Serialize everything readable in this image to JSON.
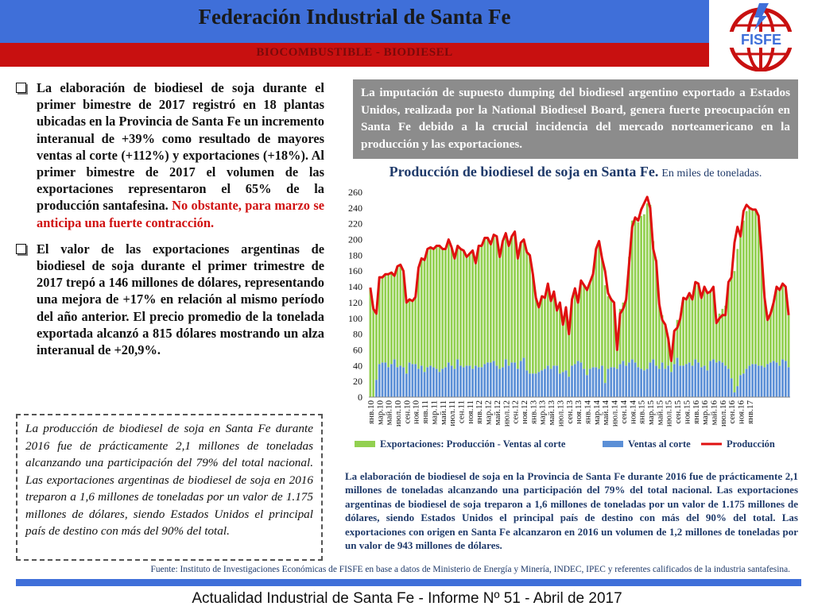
{
  "header": {
    "title": "Federación Industrial de Santa Fe",
    "subtitle": "BIOCOMBUSTIBLE - BIODIESEL",
    "logo_text": "FISFE"
  },
  "bullets": [
    {
      "text": "La elaboración de biodiesel de soja durante el primer bimestre de 2017 registró en 18 plantas ubicadas en la Provincia de Santa Fe un incremento interanual de +39% como resultado de mayores ventas al corte (+112%) y exportaciones (+18%). Al primer bimestre de 2017 el volumen de las exportaciones representaron el 65% de la producción santafesina. ",
      "highlight": "No obstante, para marzo se anticipa una fuerte contracción."
    },
    {
      "text": "El valor de las exportaciones argentinas de biodiesel de soja durante el primer trimestre de 2017 trepó a 146 millones de dólares, representando una mejora de +17% en relación al mismo período del año anterior. El precio promedio de la tonelada exportada alcanzó a 815 dólares mostrando un alza interanual de +20,9%."
    }
  ],
  "dashed_box": "La producción de biodiesel de soja en Santa Fe durante 2016 fue de prácticamente 2,1 millones de toneladas alcanzando una participación del 79% del total nacional. Las exportaciones argentinas de biodiesel de soja en 2016 treparon a 1,6 millones de toneladas por un valor de 1.175 millones de dólares, siendo Estados Unidos el principal país de destino con más del 90% del total.",
  "gray_box": "La imputación de supuesto dumping del biodiesel argentino exportado a Estados Unidos, realizada por la National Biodiesel Board, genera fuerte preocupación en Santa Fe debido a la crucial incidencia del mercado norteamericano en la producción y las exportaciones.",
  "chart_note": "La elaboración de biodiesel de soja en la Provincia de Santa Fe durante 2016 fue de prácticamente 2,1 millones de toneladas alcanzando una participación del 79% del total nacional. Las exportaciones argentinas de biodiesel de soja treparon a 1,6 millones de toneladas por un valor de 1.175 millones de dólares, siendo Estados Unidos el principal país de destino con más del 90% del total. Las exportaciones con origen en Santa Fe alcanzaron en 2016 un volumen de 1,2 millones de toneladas por un valor de 943 millones de dólares.",
  "source": "Fuente: Instituto de Investigaciones Económicas de FISFE en base a datos de Ministerio de Energía y Minería, INDEC, IPEC y referentes calificados de la industria santafesina.",
  "footer": "Actualidad Industrial de Santa Fe - Informe Nº 51 - Abril de 2017",
  "colors": {
    "header_blue": "#3f6fd9",
    "header_red": "#c81010",
    "exports_green": "#92d050",
    "sales_blue": "#5b8fd6",
    "production_red": "#e01010"
  },
  "chart_data": {
    "type": "bar",
    "stacked": true,
    "title": "Producción de biodiesel de soja en Santa Fe.",
    "subtitle": "En miles de toneladas.",
    "ylim": [
      0,
      260
    ],
    "yticks": [
      0,
      20,
      40,
      60,
      80,
      100,
      120,
      140,
      160,
      180,
      200,
      220,
      240,
      260
    ],
    "xtick_labels": [
      "янв.10",
      "мар.10",
      "май.10",
      "июл.10",
      "сен.10",
      "ноя.10",
      "янв.11",
      "мар.11",
      "май.11",
      "июл.11",
      "сен.11",
      "ноя.11",
      "янв.12",
      "мар.12",
      "май.12",
      "июл.12",
      "сен.12",
      "ноя.12",
      "янв.13",
      "мар.13",
      "май.13",
      "июл.13",
      "сен.13",
      "ноя.13",
      "янв.14",
      "мар.14",
      "май.14",
      "июл.14",
      "сен.14",
      "ноя.14",
      "янв.15",
      "мар.15",
      "май.15",
      "июл.15",
      "сен.15",
      "ноя.15",
      "янв.16",
      "мар.16",
      "май.16",
      "июл.16",
      "сен.16",
      "ноя.16",
      "янв.17"
    ],
    "legend_position": "bottom",
    "series": [
      {
        "name": "Ventas al corte",
        "type": "bar",
        "values": [
          0,
          0,
          22,
          42,
          44,
          44,
          38,
          42,
          48,
          38,
          40,
          38,
          30,
          44,
          42,
          42,
          36,
          40,
          32,
          38,
          40,
          38,
          36,
          32,
          36,
          38,
          44,
          40,
          36,
          48,
          40,
          38,
          40,
          40,
          36,
          40,
          38,
          38,
          42,
          44,
          44,
          46,
          40,
          36,
          38,
          48,
          40,
          44,
          44,
          36,
          46,
          50,
          34,
          30,
          30,
          30,
          32,
          34,
          36,
          40,
          36,
          40,
          40,
          30,
          32,
          34,
          26,
          40,
          42,
          46,
          44,
          36,
          28,
          36,
          38,
          38,
          36,
          40,
          18,
          36,
          38,
          38,
          36,
          42,
          46,
          40,
          44,
          48,
          44,
          38,
          36,
          34,
          36,
          44,
          48,
          40,
          36,
          44,
          36,
          40,
          32,
          42,
          50,
          40,
          40,
          42,
          44,
          40,
          48,
          44,
          38,
          40,
          34,
          46,
          48,
          44,
          46,
          44,
          40,
          36,
          24,
          6,
          14,
          28,
          30,
          36,
          40,
          42,
          42,
          40,
          40,
          38,
          42,
          44,
          46,
          44,
          40,
          48,
          46,
          38
        ]
      },
      {
        "name": "Exportaciones: Producción - Ventas al corte",
        "type": "bar",
        "values": [
          139,
          112,
          84,
          110,
          108,
          112,
          118,
          116,
          106,
          128,
          128,
          122,
          90,
          80,
          80,
          85,
          128,
          136,
          142,
          150,
          150,
          150,
          156,
          160,
          152,
          150,
          156,
          150,
          140,
          144,
          148,
          148,
          138,
          142,
          150,
          130,
          154,
          154,
          160,
          158,
          150,
          160,
          164,
          142,
          160,
          160,
          152,
          160,
          166,
          140,
          150,
          150,
          150,
          150,
          126,
          96,
          82,
          94,
          90,
          104,
          86,
          94,
          70,
          90,
          60,
          80,
          54,
          84,
          96,
          74,
          104,
          106,
          108,
          110,
          118,
          150,
          162,
          136,
          124,
          92,
          88,
          82,
          42,
          70,
          74,
          86,
          134,
          176,
          184,
          184,
          194,
          198,
          210,
          200,
          150,
          134,
          82,
          60,
          56,
          34,
          14,
          42,
          48,
          60,
          86,
          84,
          88,
          84,
          98,
          100,
          88,
          100,
          98,
          88,
          92,
          50,
          60,
          68,
          76,
          110,
          128,
          154,
          174,
          176,
          194,
          200,
          200,
          196,
          196,
          190,
          142,
          88,
          56,
          62,
          74,
          94,
          96,
          96,
          94,
          66
        ]
      },
      {
        "name": "Producción",
        "type": "line",
        "values": [
          139,
          112,
          106,
          152,
          152,
          156,
          156,
          158,
          154,
          166,
          168,
          160,
          120,
          124,
          122,
          127,
          164,
          176,
          174,
          188,
          190,
          188,
          192,
          192,
          188,
          188,
          200,
          190,
          176,
          192,
          188,
          186,
          178,
          182,
          186,
          170,
          192,
          192,
          202,
          202,
          194,
          206,
          204,
          178,
          198,
          208,
          192,
          204,
          210,
          176,
          196,
          200,
          184,
          180,
          156,
          126,
          114,
          128,
          126,
          144,
          122,
          134,
          110,
          120,
          92,
          114,
          80,
          124,
          138,
          120,
          148,
          142,
          136,
          146,
          156,
          188,
          198,
          176,
          160,
          132,
          124,
          120,
          60,
          106,
          112,
          124,
          170,
          216,
          228,
          224,
          238,
          246,
          254,
          240,
          188,
          172,
          118,
          98,
          92,
          74,
          46,
          84,
          88,
          100,
          126,
          124,
          132,
          124,
          146,
          144,
          126,
          140,
          132,
          134,
          140,
          94,
          100,
          104,
          104,
          146,
          152,
          196,
          216,
          204,
          236,
          244,
          240,
          238,
          238,
          230,
          182,
          126,
          98,
          106,
          120,
          140,
          136,
          144,
          140,
          104
        ]
      }
    ]
  }
}
